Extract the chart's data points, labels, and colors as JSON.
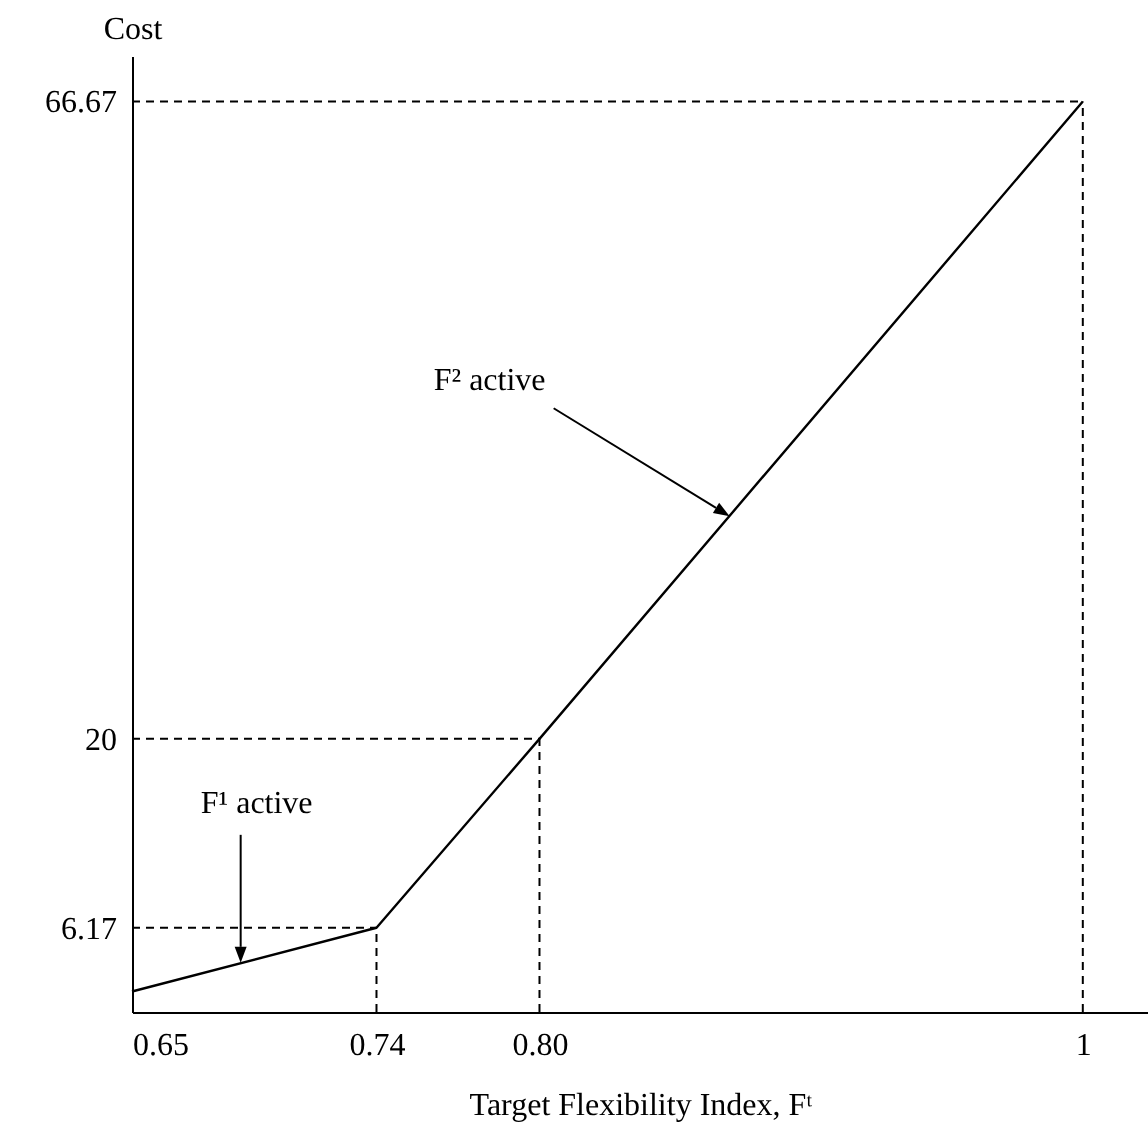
{
  "chart_data": {
    "type": "line",
    "xlabel": "Target Flexibility Index, Fᵗ",
    "ylabel": "Cost",
    "x": [
      0.65,
      0.74,
      0.8,
      1
    ],
    "series": [
      {
        "color": "#000000",
        "values": [
          1.5,
          6.17,
          20,
          66.67
        ]
      }
    ],
    "xlim": [
      0.65,
      1.024
    ],
    "ylim": [
      0,
      70
    ],
    "xticks": [
      0.65,
      0.74,
      {
        "value": 0.8,
        "label": "0.80"
      },
      1
    ],
    "yticks": [
      6.17,
      20,
      66.67
    ],
    "ref_lines": [
      {
        "axis": "y",
        "value": 6.17,
        "line_style": "dashed"
      },
      {
        "axis": "y",
        "value": 20,
        "line_style": "dashed"
      },
      {
        "axis": "y",
        "value": 66.67,
        "line_style": "dashed"
      },
      {
        "axis": "x",
        "value": 0.74,
        "line_style": "dashed"
      },
      {
        "axis": "x",
        "value": 0.8,
        "line_style": "dashed"
      },
      {
        "axis": "x",
        "value": 1,
        "line_style": "dashed"
      }
    ],
    "annotations": [
      {
        "text": "F¹ active",
        "x": 0.69,
        "y": 3.6
      },
      {
        "text": "F² active",
        "x": 0.87,
        "y": 36.3
      }
    ],
    "grid": false,
    "legend": false,
    "marker": "none",
    "line_style": "solid"
  }
}
